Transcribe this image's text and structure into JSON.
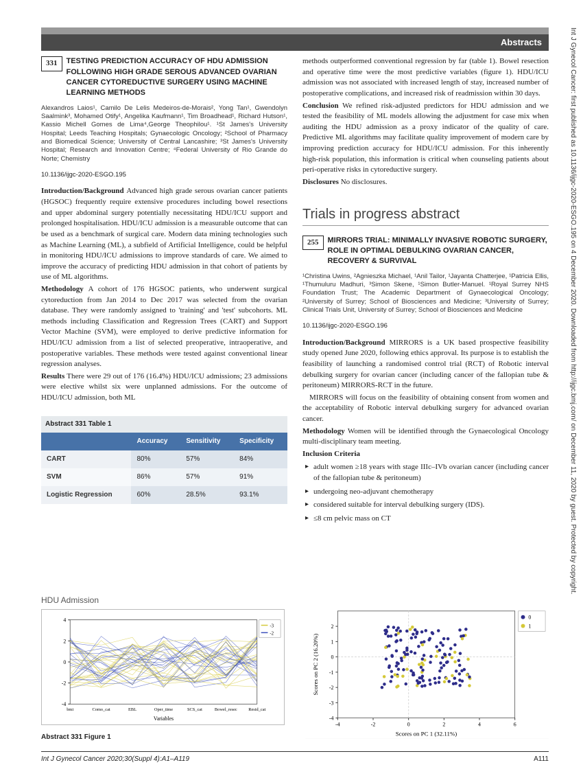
{
  "header": {
    "section_label": "Abstracts"
  },
  "vertical_citation": "Int J Gynecol Cancer: first published as 10.1136/ijgc-2020-ESGO.195 on 4 December 2020. Downloaded from http://ijgc.bmj.com/ on December 11, 2020 by guest. Protected by copyright.",
  "abstract331": {
    "number": "331",
    "title": "TESTING PREDICTION ACCURACY OF HDU ADMISSION FOLLOWING HIGH GRADE SEROUS ADVANCED OVARIAN CANCER CYTOREDUCTIVE SURGERY USING MACHINE LEARNING METHODS",
    "authors_html": "Alexandros Laios¹, Camilo De Lelis Medeiros-de-Morais², Yong Tan¹, Gwendolyn Saalmink³, Mohamed Otify¹, Angelika Kaufmann¹, Tim Broadhead¹, Richard Hutson¹, Kassio Michell Gomes de Lima⁴,George Theophilou¹. ¹St James's University Hospital; Leeds Teaching Hospitals; Gynaecologic Oncology; ²School of Pharmacy and Biomedical Science; University of Central Lancashire; ³St James's University Hospital; Research and Innovation Centre; ⁴Federal University of Rio Grande do Norte; Chemistry",
    "doi": "10.1136/ijgc-2020-ESGO.195",
    "intro": "Advanced high grade serous ovarian cancer patients (HGSOC) frequently require extensive procedures including bowel resections and upper abdominal surgery potentially necessitating HDU/ICU support and prolonged hospitalisation. HDU/ICU admission is a measurable outcome that can be used as a benchmark of surgical care. Modern data mining technologies such as Machine Learning (ML), a subfield of Artificial Intelligence, could be helpful in monitoring HDU/ICU admissions to improve standards of care. We aimed to improve the accuracy of predicting HDU admission in that cohort of patients by use of ML algorithms.",
    "methodology": "A cohort of 176 HGSOC patients, who underwent surgical cytoreduction from Jan 2014 to Dec 2017 was selected from the ovarian database. They were randomly assigned to 'training' and 'test' subcohorts. ML methods including Classification and Regression Trees (CART) and Support Vector Machine (SVM), were employed to derive predictive information for HDU/ICU admission from a list of selected preoperative, intraoperative, and postoperative variables. These methods were tested against conventional linear regression analyses.",
    "results": "There were 29 out of 176 (16.4%) HDU/ICU admissions; 23 admissions were elective whilst six were unplanned admissions. For the outcome of HDU/ICU admission, both ML",
    "results_continued": "methods outperformed conventional regression by far (table 1). Bowel resection and operative time were the most predictive variables (figure 1). HDU/ICU admission was not associated with increased length of stay, increased number of postoperative complications, and increased risk of readmission within 30 days.",
    "conclusion": "We refined risk-adjusted predictors for HDU admission and we tested the feasibility of ML models allowing the adjustment for case mix when auditing the HDU admission as a proxy indicator of the quality of care. Predictive ML algorithms may facilitate quality improvement of modern care by improving prediction accuracy for HDU/ICU admission. For this inherently high-risk population, this information is critical when counseling patients about peri-operative risks in cytoreductive surgery.",
    "disclosures": "No disclosures."
  },
  "trials_heading": "Trials in progress abstract",
  "abstract255": {
    "number": "255",
    "title": "MIRRORS TRIAL: MINIMALLY INVASIVE ROBOTIC SURGERY, ROLE IN OPTIMAL DEBULKING OVARIAN CANCER, RECOVERY & SURVIVAL",
    "authors_html": "¹Christina Uwins, ²Agnieszka Michael, ¹Anil Tailor, ¹Jayanta Chatterjee, ¹Patricia Ellis, ¹Thumuluru Madhuri, ³Simon Skene, ¹Simon Butler-Manuel. ¹Royal Surrey NHS Foundation Trust; The Academic Department of Gynaecological Oncology; ²University of Surrey; School of Biosciences and Medicine; ³University of Surrey; Clinical Trials Unit, University of Surrey; School of Biosciences and Medicine",
    "doi": "10.1136/ijgc-2020-ESGO.196",
    "intro": "MIRRORS is a UK based prospective feasibility study opened June 2020, following ethics approval. Its purpose is to establish the feasibility of launching a randomised control trial (RCT) of Robotic interval debulking surgery for ovarian cancer (including cancer of the fallopian tube & peritoneum) MIRRORS-RCT in the future.",
    "intro2": "MIRRORS will focus on the feasibility of obtaining consent from women and the acceptability of Robotic interval debulking surgery for advanced ovarian cancer.",
    "methodology": "Women will be identified through the Gynaecological Oncology multi-disciplinary team meeting.",
    "inclusion_heading": "Inclusion Criteria",
    "criteria": [
      "adult women ≥18 years with stage IIIc–IVb ovarian cancer (including cancer of the fallopian tube & peritoneum)",
      "undergoing neo-adjuvant chemotherapy",
      "considered suitable for interval debulking surgery (IDS).",
      "≤8 cm pelvic mass on CT"
    ]
  },
  "table331": {
    "caption": "Abstract 331 Table 1",
    "headers": [
      "",
      "Accuracy",
      "Sensitivity",
      "Specificity"
    ],
    "rows": [
      [
        "CART",
        "80%",
        "57%",
        "84%"
      ],
      [
        "SVM",
        "86%",
        "57%",
        "91%"
      ],
      [
        "Logistic Regression",
        "60%",
        "28.5%",
        "93.1%"
      ]
    ],
    "header_bg": "#4772a8",
    "header_color": "#ffffff",
    "row_bg": "#dde4ec",
    "row_alt_bg": "#eff3f7"
  },
  "figure1": {
    "caption": "Abstract 331 Figure 1",
    "left_chart": {
      "title": "HDU Admission",
      "type": "parallel-coordinates",
      "xlabel": "Variables",
      "x_categories": [
        "bmi",
        "Como_cat",
        "EBL",
        "Oper_time",
        "SCS_cat",
        "Bowel_resec",
        "Resid_cat"
      ],
      "ylim": [
        -4,
        4
      ],
      "yticks": [
        -4,
        -2,
        0,
        2,
        4
      ],
      "series": [
        {
          "label": "-3",
          "color": "#d4c838"
        },
        {
          "label": "-2",
          "color": "#3b4fbb"
        }
      ],
      "line_colors": [
        "#d4c838",
        "#3b4fbb"
      ],
      "background": "#ffffff",
      "grid_color": "#d0d0d0"
    },
    "right_chart": {
      "type": "scatter",
      "xlabel": "Scores on PC 1 (32.11%)",
      "ylabel": "Scores on PC 2 (16.20%)",
      "xlim": [
        -4,
        6
      ],
      "xticks": [
        -4,
        -2,
        0,
        2,
        4,
        6
      ],
      "ylim": [
        -4,
        3
      ],
      "yticks": [
        -4,
        -3,
        -2,
        -1,
        0,
        1,
        2
      ],
      "legend": [
        {
          "label": "0",
          "marker": "circle",
          "color": "#2e2d8a"
        },
        {
          "label": "1",
          "marker": "circle",
          "color": "#d4c838"
        }
      ],
      "background": "#ffffff",
      "grid_color": "#d8d8d8",
      "grid_dashed": true
    }
  },
  "footer": {
    "citation": "Int J Gynecol Cancer 2020;30(Suppl 4):A1–A119",
    "page": "A111"
  }
}
